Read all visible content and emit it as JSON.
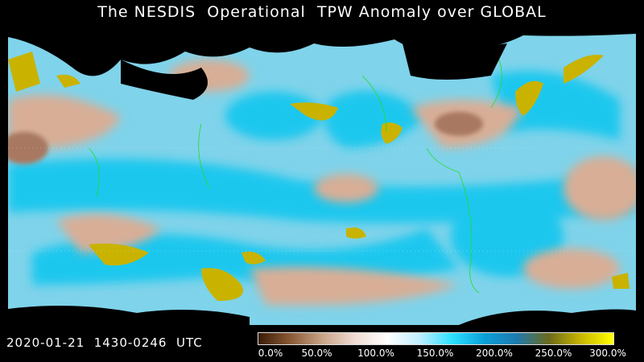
{
  "title": "The NESDIS  Operational  TPW Anomaly over GLOBAL",
  "timestamp": "2020-01-21  1430-0246  UTC",
  "colorbar": {
    "stops": [
      "#3a1c06",
      "#8a5a36",
      "#c9a58a",
      "#f0dcd2",
      "#ffffff",
      "#bfefff",
      "#2ee0ff",
      "#0aa0d8",
      "#1f7ab0",
      "#6c6a1c",
      "#c9b600",
      "#ffff00"
    ],
    "ticks": [
      "0.0%",
      "50.0%",
      "100.0%",
      "150.0%",
      "200.0%",
      "250.0%",
      "300.0%"
    ]
  },
  "map_colors": {
    "ocean_base": "#7fd3ea",
    "wet": "#1fc7ee",
    "dry": "#d8ae96",
    "very_dry": "#a87860",
    "extreme": "#c9b300",
    "no_data": "#000000",
    "coast": "#22dd22"
  }
}
